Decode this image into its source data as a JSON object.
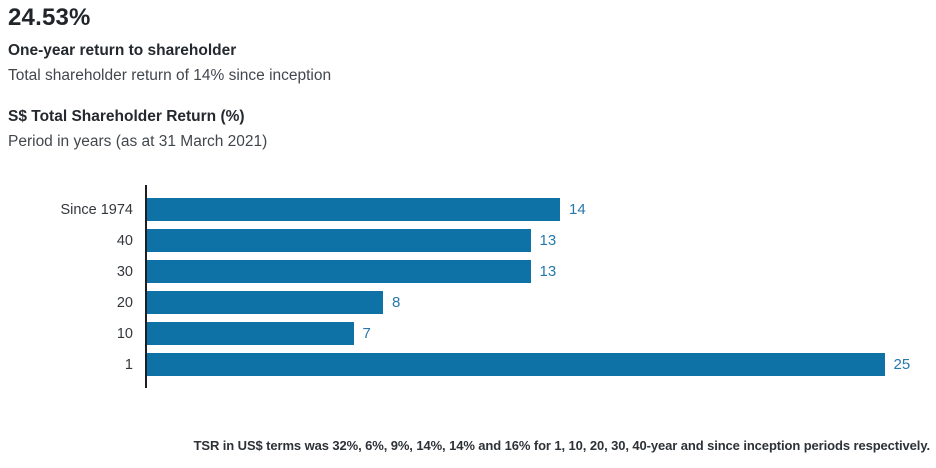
{
  "header": {
    "headline": "24.53%",
    "subheadline": "One-year return to shareholder",
    "description": "Total shareholder return of 14% since inception"
  },
  "chart": {
    "title": "S$ Total Shareholder Return (%)",
    "subtitle": "Period in years (as at 31 March 2021)"
  },
  "chart_data": {
    "type": "bar",
    "orientation": "horizontal",
    "title": "S$ Total Shareholder Return (%)",
    "subtitle": "Period in years (as at 31 March 2021)",
    "categories": [
      "Since 1974",
      "40",
      "30",
      "20",
      "10",
      "1"
    ],
    "values": [
      14,
      13,
      13,
      8,
      7,
      25
    ],
    "xlabel": "",
    "ylabel": "",
    "xlim": [
      0,
      25
    ],
    "grid": false,
    "legend": false,
    "bar_color": "#0e72a6",
    "value_label_color": "#2878ab",
    "axis_color": "#1b1f23"
  },
  "footer": {
    "note": "TSR in US$ terms was 32%, 6%, 9%, 14%, 14% and 16% for 1, 10, 20, 30, 40-year and since inception periods respectively."
  }
}
